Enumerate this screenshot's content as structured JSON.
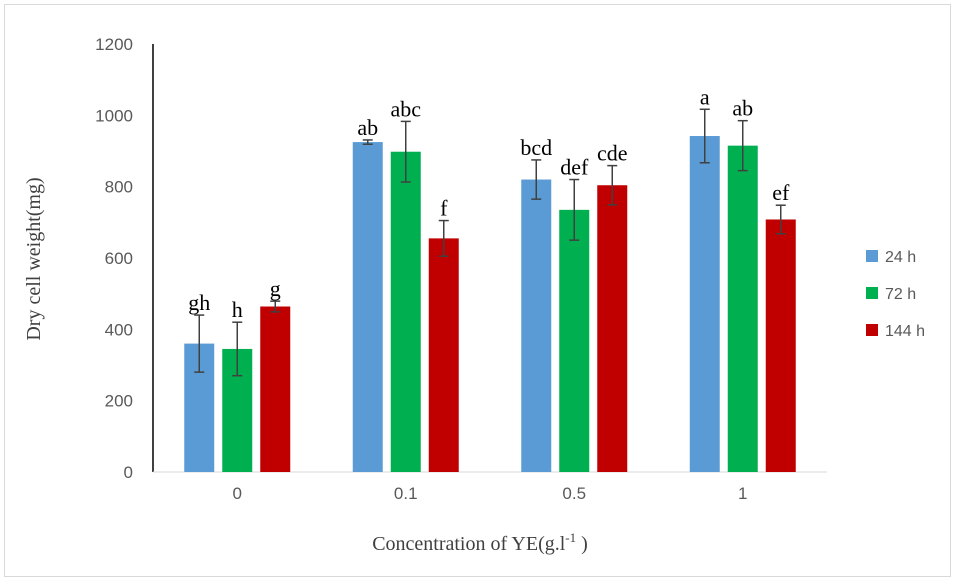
{
  "chart_data": {
    "type": "bar",
    "title": "",
    "xlabel": "Concentration of YE(g.l",
    "xlabel_sup": "-1",
    "xlabel_end": " )",
    "ylabel": "Dry cell weight(mg)",
    "ylim": [
      0,
      1200
    ],
    "yticks": [
      0,
      200,
      400,
      600,
      800,
      1000,
      1200
    ],
    "categories": [
      "0",
      "0.1",
      "0.5",
      "1"
    ],
    "legend_position": "right",
    "series": [
      {
        "name": "24 h",
        "color": "#5b9bd5",
        "values": [
          360,
          925,
          820,
          942
        ],
        "errors": [
          80,
          6,
          55,
          75
        ],
        "labels": [
          "gh",
          "ab",
          "bcd",
          "a"
        ]
      },
      {
        "name": "72 h",
        "color": "#00b050",
        "values": [
          345,
          898,
          735,
          915
        ],
        "errors": [
          75,
          85,
          85,
          70
        ],
        "labels": [
          "h",
          "abc",
          "def",
          "ab"
        ]
      },
      {
        "name": "144 h",
        "color": "#c00000",
        "values": [
          464,
          655,
          804,
          708
        ],
        "errors": [
          15,
          50,
          55,
          40
        ],
        "labels": [
          "g",
          "f",
          "cde",
          "ef"
        ]
      }
    ]
  }
}
